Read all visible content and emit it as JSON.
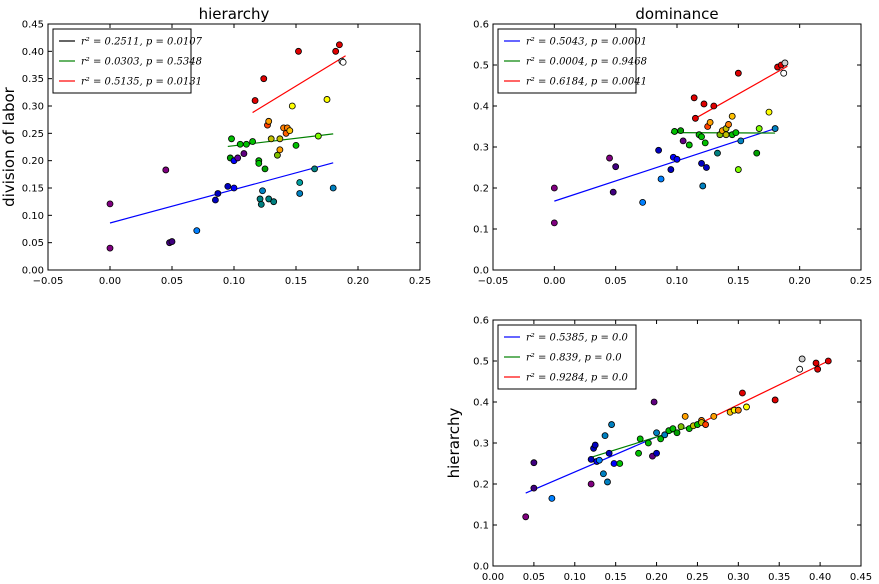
{
  "chart_data": [
    {
      "type": "scatter",
      "title": "hierarchy",
      "xlabel": "",
      "ylabel": "division of labor",
      "xlim": [
        -0.05,
        0.25
      ],
      "ylim": [
        0.0,
        0.45
      ],
      "xticks": [
        "−0.05",
        "0.00",
        "0.05",
        "0.10",
        "0.15",
        "0.20",
        "0.25"
      ],
      "yticks": [
        "0.00",
        "0.05",
        "0.10",
        "0.15",
        "0.20",
        "0.25",
        "0.30",
        "0.35",
        "0.40",
        "0.45"
      ],
      "legend_position": "top-left",
      "series": [
        {
          "name": "r² = 0.2511, p = 0.0107",
          "color": "#0000ff",
          "fit": [
            [
              0.0,
              0.086
            ],
            [
              0.18,
              0.196
            ]
          ],
          "legend_line_color": "#000000"
        },
        {
          "name": "r² = 0.0303, p = 0.5348",
          "color": "#008000",
          "fit": [
            [
              0.095,
              0.226
            ],
            [
              0.18,
              0.249
            ]
          ],
          "legend_line_color": "#008000"
        },
        {
          "name": "r² = 0.5135, p = 0.0131",
          "color": "#ff0000",
          "fit": [
            [
              0.115,
              0.288
            ],
            [
              0.19,
              0.392
            ]
          ],
          "legend_line_color": "#ff0000"
        }
      ],
      "points": [
        {
          "x": 0.0,
          "y": 0.121,
          "color": "#800080"
        },
        {
          "x": 0.0,
          "y": 0.04,
          "color": "#800080"
        },
        {
          "x": 0.045,
          "y": 0.183,
          "color": "#800080"
        },
        {
          "x": 0.048,
          "y": 0.05,
          "color": "#400080"
        },
        {
          "x": 0.05,
          "y": 0.052,
          "color": "#400080"
        },
        {
          "x": 0.07,
          "y": 0.072,
          "color": "#0080ff"
        },
        {
          "x": 0.085,
          "y": 0.128,
          "color": "#0000c0"
        },
        {
          "x": 0.087,
          "y": 0.14,
          "color": "#0000c0"
        },
        {
          "x": 0.095,
          "y": 0.153,
          "color": "#0000c0"
        },
        {
          "x": 0.097,
          "y": 0.205,
          "color": "#00a000"
        },
        {
          "x": 0.098,
          "y": 0.24,
          "color": "#00c000"
        },
        {
          "x": 0.1,
          "y": 0.2,
          "color": "#0000ff"
        },
        {
          "x": 0.1,
          "y": 0.15,
          "color": "#0000ff"
        },
        {
          "x": 0.103,
          "y": 0.205,
          "color": "#6000a0"
        },
        {
          "x": 0.105,
          "y": 0.23,
          "color": "#00c000"
        },
        {
          "x": 0.108,
          "y": 0.213,
          "color": "#600080"
        },
        {
          "x": 0.11,
          "y": 0.23,
          "color": "#00c000"
        },
        {
          "x": 0.115,
          "y": 0.235,
          "color": "#00c000"
        },
        {
          "x": 0.117,
          "y": 0.31,
          "color": "#e00000"
        },
        {
          "x": 0.12,
          "y": 0.2,
          "color": "#00c000"
        },
        {
          "x": 0.12,
          "y": 0.195,
          "color": "#00c000"
        },
        {
          "x": 0.121,
          "y": 0.13,
          "color": "#008080"
        },
        {
          "x": 0.122,
          "y": 0.12,
          "color": "#008080"
        },
        {
          "x": 0.123,
          "y": 0.145,
          "color": "#0080c0"
        },
        {
          "x": 0.124,
          "y": 0.35,
          "color": "#e00000"
        },
        {
          "x": 0.125,
          "y": 0.185,
          "color": "#00a000"
        },
        {
          "x": 0.127,
          "y": 0.265,
          "color": "#ff4000"
        },
        {
          "x": 0.128,
          "y": 0.272,
          "color": "#ffa000"
        },
        {
          "x": 0.128,
          "y": 0.13,
          "color": "#008080"
        },
        {
          "x": 0.13,
          "y": 0.24,
          "color": "#c0c000"
        },
        {
          "x": 0.132,
          "y": 0.125,
          "color": "#008080"
        },
        {
          "x": 0.135,
          "y": 0.21,
          "color": "#80c000"
        },
        {
          "x": 0.137,
          "y": 0.22,
          "color": "#ffa000"
        },
        {
          "x": 0.137,
          "y": 0.24,
          "color": "#c0c000"
        },
        {
          "x": 0.14,
          "y": 0.26,
          "color": "#ff8000"
        },
        {
          "x": 0.142,
          "y": 0.25,
          "color": "#ff6000"
        },
        {
          "x": 0.143,
          "y": 0.26,
          "color": "#ff8000"
        },
        {
          "x": 0.145,
          "y": 0.255,
          "color": "#ffc000"
        },
        {
          "x": 0.147,
          "y": 0.3,
          "color": "#ffff00"
        },
        {
          "x": 0.15,
          "y": 0.228,
          "color": "#00c000"
        },
        {
          "x": 0.152,
          "y": 0.4,
          "color": "#e00000"
        },
        {
          "x": 0.153,
          "y": 0.16,
          "color": "#00a0a0"
        },
        {
          "x": 0.153,
          "y": 0.14,
          "color": "#0080c0"
        },
        {
          "x": 0.165,
          "y": 0.185,
          "color": "#008080"
        },
        {
          "x": 0.168,
          "y": 0.245,
          "color": "#80ff00"
        },
        {
          "x": 0.175,
          "y": 0.312,
          "color": "#ffff00"
        },
        {
          "x": 0.18,
          "y": 0.15,
          "color": "#0080c0"
        },
        {
          "x": 0.182,
          "y": 0.4,
          "color": "#e00000"
        },
        {
          "x": 0.185,
          "y": 0.412,
          "color": "#e00000"
        },
        {
          "x": 0.187,
          "y": 0.382,
          "color": "#d0d0d0"
        },
        {
          "x": 0.188,
          "y": 0.38,
          "color": "#ffffff"
        }
      ]
    },
    {
      "type": "scatter",
      "title": "dominance",
      "xlabel": "",
      "ylabel": "",
      "xlim": [
        -0.05,
        0.25
      ],
      "ylim": [
        0.0,
        0.6
      ],
      "xticks": [
        "−0.05",
        "0.00",
        "0.05",
        "0.10",
        "0.15",
        "0.20",
        "0.25"
      ],
      "yticks": [
        "0.0",
        "0.1",
        "0.2",
        "0.3",
        "0.4",
        "0.5",
        "0.6"
      ],
      "legend_position": "top-left",
      "series": [
        {
          "name": "r² = 0.5043, p = 0.0001",
          "color": "#0000ff",
          "fit": [
            [
              0.0,
              0.168
            ],
            [
              0.18,
              0.345
            ]
          ],
          "legend_line_color": "#0000ff"
        },
        {
          "name": "r² = 0.0004, p = 0.9468",
          "color": "#008000",
          "fit": [
            [
              0.095,
              0.335
            ],
            [
              0.18,
              0.334
            ]
          ],
          "legend_line_color": "#008000"
        },
        {
          "name": "r² = 0.6184, p = 0.0041",
          "color": "#ff0000",
          "fit": [
            [
              0.115,
              0.37
            ],
            [
              0.19,
              0.497
            ]
          ],
          "legend_line_color": "#ff0000"
        }
      ],
      "points": [
        {
          "x": 0.0,
          "y": 0.2,
          "color": "#800080"
        },
        {
          "x": 0.0,
          "y": 0.115,
          "color": "#800080"
        },
        {
          "x": 0.045,
          "y": 0.273,
          "color": "#800080"
        },
        {
          "x": 0.048,
          "y": 0.19,
          "color": "#400080"
        },
        {
          "x": 0.05,
          "y": 0.252,
          "color": "#400080"
        },
        {
          "x": 0.072,
          "y": 0.165,
          "color": "#0080ff"
        },
        {
          "x": 0.085,
          "y": 0.292,
          "color": "#0000c0"
        },
        {
          "x": 0.087,
          "y": 0.222,
          "color": "#0080ff"
        },
        {
          "x": 0.095,
          "y": 0.245,
          "color": "#0000c0"
        },
        {
          "x": 0.097,
          "y": 0.275,
          "color": "#0000ff"
        },
        {
          "x": 0.098,
          "y": 0.338,
          "color": "#00c000"
        },
        {
          "x": 0.1,
          "y": 0.27,
          "color": "#0000ff"
        },
        {
          "x": 0.103,
          "y": 0.34,
          "color": "#00a000"
        },
        {
          "x": 0.105,
          "y": 0.315,
          "color": "#600080"
        },
        {
          "x": 0.11,
          "y": 0.305,
          "color": "#00c000"
        },
        {
          "x": 0.114,
          "y": 0.42,
          "color": "#e00000"
        },
        {
          "x": 0.115,
          "y": 0.37,
          "color": "#e00000"
        },
        {
          "x": 0.118,
          "y": 0.33,
          "color": "#00c000"
        },
        {
          "x": 0.12,
          "y": 0.26,
          "color": "#0000c0"
        },
        {
          "x": 0.12,
          "y": 0.325,
          "color": "#00c000"
        },
        {
          "x": 0.121,
          "y": 0.205,
          "color": "#0080c0"
        },
        {
          "x": 0.122,
          "y": 0.405,
          "color": "#e00000"
        },
        {
          "x": 0.123,
          "y": 0.31,
          "color": "#00c000"
        },
        {
          "x": 0.124,
          "y": 0.25,
          "color": "#0000c0"
        },
        {
          "x": 0.125,
          "y": 0.35,
          "color": "#ff4000"
        },
        {
          "x": 0.127,
          "y": 0.36,
          "color": "#ffa000"
        },
        {
          "x": 0.13,
          "y": 0.4,
          "color": "#e00000"
        },
        {
          "x": 0.133,
          "y": 0.285,
          "color": "#008080"
        },
        {
          "x": 0.135,
          "y": 0.33,
          "color": "#80c000"
        },
        {
          "x": 0.137,
          "y": 0.34,
          "color": "#ffa000"
        },
        {
          "x": 0.14,
          "y": 0.345,
          "color": "#c0c000"
        },
        {
          "x": 0.14,
          "y": 0.33,
          "color": "#c0c000"
        },
        {
          "x": 0.142,
          "y": 0.355,
          "color": "#ff8000"
        },
        {
          "x": 0.145,
          "y": 0.33,
          "color": "#00c000"
        },
        {
          "x": 0.145,
          "y": 0.375,
          "color": "#ffc000"
        },
        {
          "x": 0.148,
          "y": 0.335,
          "color": "#00c000"
        },
        {
          "x": 0.15,
          "y": 0.245,
          "color": "#80ff00"
        },
        {
          "x": 0.15,
          "y": 0.48,
          "color": "#e00000"
        },
        {
          "x": 0.152,
          "y": 0.315,
          "color": "#0080c0"
        },
        {
          "x": 0.165,
          "y": 0.285,
          "color": "#00a000"
        },
        {
          "x": 0.167,
          "y": 0.345,
          "color": "#80ff00"
        },
        {
          "x": 0.175,
          "y": 0.385,
          "color": "#ffff00"
        },
        {
          "x": 0.18,
          "y": 0.345,
          "color": "#0080c0"
        },
        {
          "x": 0.182,
          "y": 0.495,
          "color": "#e00000"
        },
        {
          "x": 0.185,
          "y": 0.5,
          "color": "#e00000"
        },
        {
          "x": 0.187,
          "y": 0.48,
          "color": "#ffffff"
        },
        {
          "x": 0.188,
          "y": 0.505,
          "color": "#d0d0d0"
        }
      ]
    },
    {
      "type": "scatter",
      "title": "",
      "xlabel": "",
      "ylabel": "hierarchy",
      "xlim": [
        0.0,
        0.45
      ],
      "ylim": [
        0.0,
        0.6
      ],
      "xticks": [
        "0.00",
        "0.05",
        "0.10",
        "0.15",
        "0.20",
        "0.25",
        "0.30",
        "0.35",
        "0.40",
        "0.45"
      ],
      "yticks": [
        "0.0",
        "0.1",
        "0.2",
        "0.3",
        "0.4",
        "0.5",
        "0.6"
      ],
      "legend_position": "top-left",
      "series": [
        {
          "name": "r² = 0.5385, p = 0.0",
          "color": "#0000ff",
          "fit": [
            [
              0.04,
              0.178
            ],
            [
              0.2,
              0.315
            ]
          ],
          "legend_line_color": "#0000ff"
        },
        {
          "name": "r² = 0.839, p = 0.0",
          "color": "#008000",
          "fit": [
            [
              0.12,
              0.265
            ],
            [
              0.26,
              0.352
            ]
          ],
          "legend_line_color": "#008000"
        },
        {
          "name": "r² = 0.9284, p = 0.0",
          "color": "#ff0000",
          "fit": [
            [
              0.25,
              0.345
            ],
            [
              0.41,
              0.5
            ]
          ],
          "legend_line_color": "#ff0000"
        }
      ],
      "points": [
        {
          "x": 0.04,
          "y": 0.12,
          "color": "#800080"
        },
        {
          "x": 0.05,
          "y": 0.252,
          "color": "#400080"
        },
        {
          "x": 0.05,
          "y": 0.19,
          "color": "#400080"
        },
        {
          "x": 0.072,
          "y": 0.165,
          "color": "#0080ff"
        },
        {
          "x": 0.12,
          "y": 0.2,
          "color": "#800080"
        },
        {
          "x": 0.12,
          "y": 0.26,
          "color": "#0000c0"
        },
        {
          "x": 0.123,
          "y": 0.287,
          "color": "#0000c0"
        },
        {
          "x": 0.125,
          "y": 0.295,
          "color": "#0000c0"
        },
        {
          "x": 0.127,
          "y": 0.255,
          "color": "#0000ff"
        },
        {
          "x": 0.13,
          "y": 0.258,
          "color": "#0080ff"
        },
        {
          "x": 0.135,
          "y": 0.225,
          "color": "#0080c0"
        },
        {
          "x": 0.137,
          "y": 0.318,
          "color": "#0080c0"
        },
        {
          "x": 0.14,
          "y": 0.205,
          "color": "#0080c0"
        },
        {
          "x": 0.142,
          "y": 0.275,
          "color": "#0000c0"
        },
        {
          "x": 0.145,
          "y": 0.345,
          "color": "#0080c0"
        },
        {
          "x": 0.148,
          "y": 0.25,
          "color": "#0000ff"
        },
        {
          "x": 0.155,
          "y": 0.25,
          "color": "#00c000"
        },
        {
          "x": 0.178,
          "y": 0.275,
          "color": "#00c000"
        },
        {
          "x": 0.18,
          "y": 0.31,
          "color": "#00c000"
        },
        {
          "x": 0.19,
          "y": 0.3,
          "color": "#00c000"
        },
        {
          "x": 0.195,
          "y": 0.268,
          "color": "#600080"
        },
        {
          "x": 0.197,
          "y": 0.4,
          "color": "#600080"
        },
        {
          "x": 0.2,
          "y": 0.275,
          "color": "#0000c0"
        },
        {
          "x": 0.2,
          "y": 0.325,
          "color": "#0080c0"
        },
        {
          "x": 0.205,
          "y": 0.31,
          "color": "#00c000"
        },
        {
          "x": 0.21,
          "y": 0.32,
          "color": "#0080c0"
        },
        {
          "x": 0.215,
          "y": 0.33,
          "color": "#00c000"
        },
        {
          "x": 0.22,
          "y": 0.335,
          "color": "#00c000"
        },
        {
          "x": 0.225,
          "y": 0.325,
          "color": "#00a000"
        },
        {
          "x": 0.23,
          "y": 0.34,
          "color": "#80c000"
        },
        {
          "x": 0.235,
          "y": 0.365,
          "color": "#ffa000"
        },
        {
          "x": 0.24,
          "y": 0.335,
          "color": "#00c000"
        },
        {
          "x": 0.245,
          "y": 0.342,
          "color": "#c0c000"
        },
        {
          "x": 0.25,
          "y": 0.345,
          "color": "#00c000"
        },
        {
          "x": 0.255,
          "y": 0.355,
          "color": "#ff8000"
        },
        {
          "x": 0.255,
          "y": 0.35,
          "color": "#c0c000"
        },
        {
          "x": 0.26,
          "y": 0.345,
          "color": "#ff4000"
        },
        {
          "x": 0.27,
          "y": 0.365,
          "color": "#ffa000"
        },
        {
          "x": 0.29,
          "y": 0.375,
          "color": "#ffc000"
        },
        {
          "x": 0.295,
          "y": 0.38,
          "color": "#ffff00"
        },
        {
          "x": 0.3,
          "y": 0.38,
          "color": "#ff8000"
        },
        {
          "x": 0.305,
          "y": 0.422,
          "color": "#e00000"
        },
        {
          "x": 0.31,
          "y": 0.388,
          "color": "#ffff00"
        },
        {
          "x": 0.345,
          "y": 0.405,
          "color": "#e00000"
        },
        {
          "x": 0.375,
          "y": 0.48,
          "color": "#ffffff"
        },
        {
          "x": 0.378,
          "y": 0.505,
          "color": "#d0d0d0"
        },
        {
          "x": 0.395,
          "y": 0.495,
          "color": "#e00000"
        },
        {
          "x": 0.397,
          "y": 0.48,
          "color": "#e00000"
        },
        {
          "x": 0.41,
          "y": 0.5,
          "color": "#e00000"
        }
      ]
    }
  ]
}
